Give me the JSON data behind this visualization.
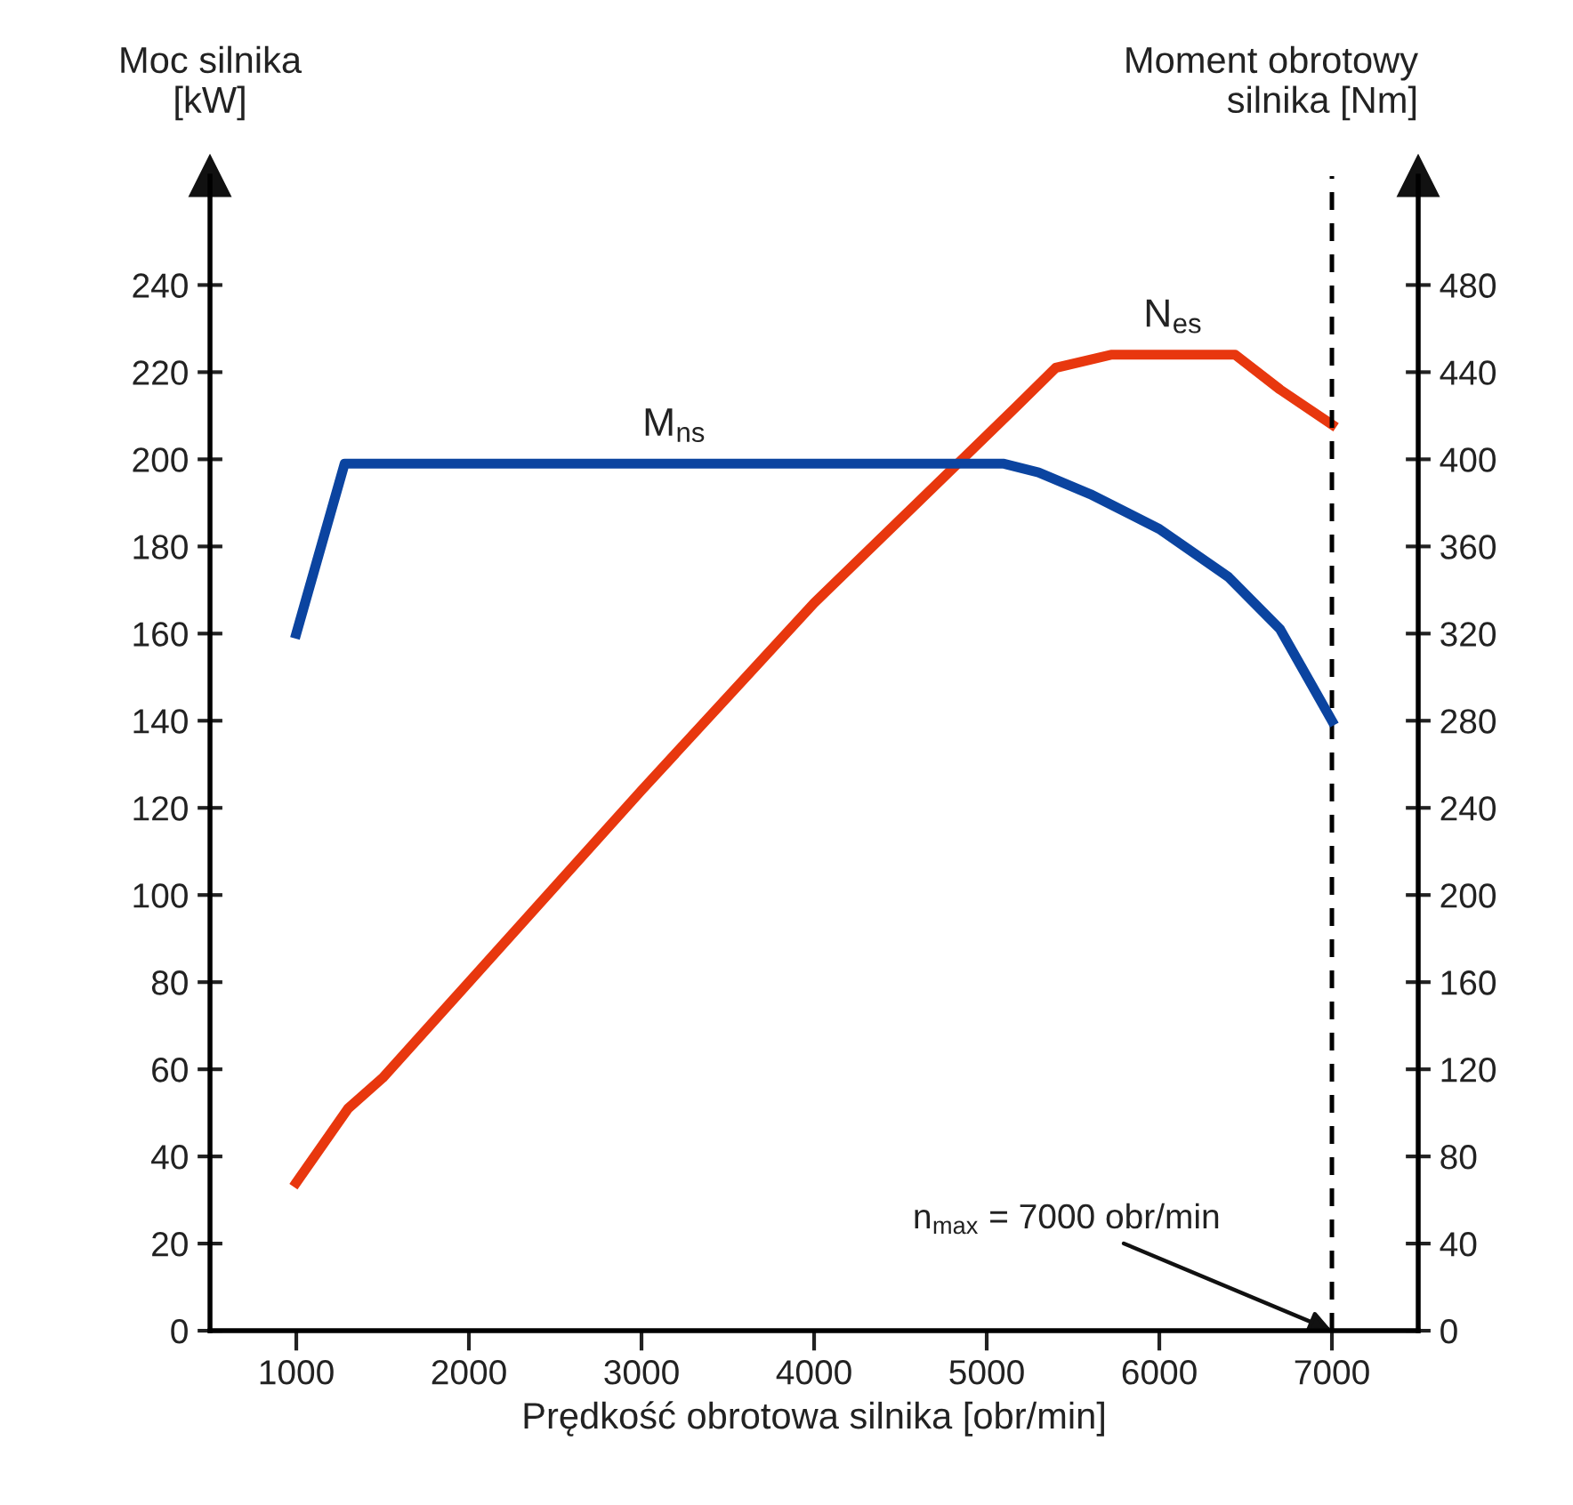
{
  "chart_data": {
    "type": "line",
    "xlabel": "Prędkość obrotowa silnika [obr/min]",
    "ylabel": "Moc silnika\n[kW]",
    "y2label": "Moment obrotowy\nsilnika [Nm]",
    "xlim": [
      500,
      7500
    ],
    "xticks": [
      1000,
      2000,
      3000,
      4000,
      5000,
      6000,
      7000
    ],
    "ylim": [
      0,
      265
    ],
    "yticks": [
      0,
      20,
      40,
      60,
      80,
      100,
      120,
      140,
      160,
      180,
      200,
      220,
      240
    ],
    "y2lim": [
      0,
      530
    ],
    "y2ticks": [
      0,
      40,
      80,
      120,
      160,
      200,
      240,
      280,
      320,
      360,
      400,
      440,
      480
    ],
    "grid": false,
    "marker": "none",
    "line_style": "solid",
    "series": [
      {
        "name": "M$_{ns}$",
        "color": "#0b44a0",
        "axis": "y2",
        "x": [
          1000,
          1280,
          5100,
          5300,
          5600,
          6000,
          6400,
          6700,
          7000
        ],
        "values": [
          320,
          398,
          398,
          394,
          384,
          368,
          346,
          322,
          280
        ]
      },
      {
        "name": "N$_{es}$",
        "color": "#e8370e",
        "axis": "y",
        "x": [
          1000,
          1300,
          1500,
          2000,
          3000,
          4000,
          5170,
          5400,
          5720,
          6440,
          6700,
          7000
        ],
        "values": [
          34,
          51,
          58,
          80,
          124,
          167,
          212,
          221,
          224,
          224,
          216,
          208
        ]
      }
    ],
    "ref_lines": [
      {
        "axis": "x",
        "value": 7000,
        "color": "#000000",
        "line_style": "dashed"
      }
    ],
    "annotations": [
      {
        "text": "n$_{max}$ = 7000 obr/min",
        "x": 7000,
        "y": 0
      }
    ]
  }
}
